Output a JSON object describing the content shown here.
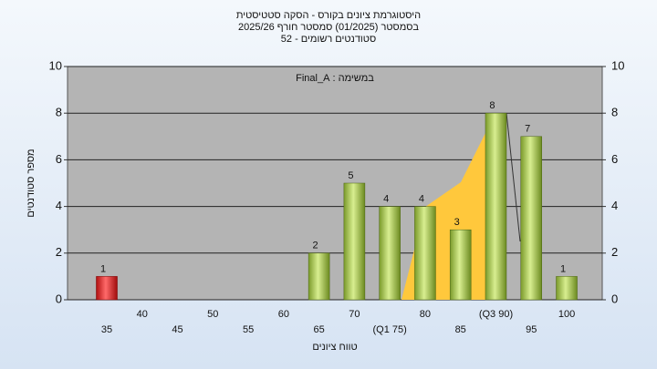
{
  "chart_data": {
    "type": "bar",
    "title": "היסטוגרמת ציונים בקורס - הסקה סטטיסטית",
    "subtitle": "בסמסטר  (01/2025)  סמסטר חורף 2025/26",
    "subtitle2": "סטודנטים רשומים - 52",
    "annotation": "במשימה : Final_A",
    "x_label": "טווח ציונים",
    "y_label": "מספר סטודנטים",
    "categories": [
      "35",
      "40",
      "45",
      "50",
      "55",
      "60",
      "65",
      "70",
      "(Q1 75)",
      "80",
      "85",
      "(Q3 90)",
      "95",
      "100"
    ],
    "values": [
      1,
      0,
      0,
      0,
      0,
      0,
      2,
      5,
      4,
      4,
      3,
      8,
      7,
      1
    ],
    "colors": [
      "red",
      "green",
      "green",
      "green",
      "green",
      "green",
      "green",
      "green",
      "green",
      "green",
      "green",
      "green",
      "green",
      "green"
    ],
    "ylim": [
      0,
      10
    ],
    "yticks": [
      0,
      2,
      4,
      6,
      8,
      10
    ],
    "y2lim": [
      0,
      10
    ],
    "y2ticks": [
      0,
      2,
      4,
      6,
      8,
      10
    ],
    "grid": true
  }
}
